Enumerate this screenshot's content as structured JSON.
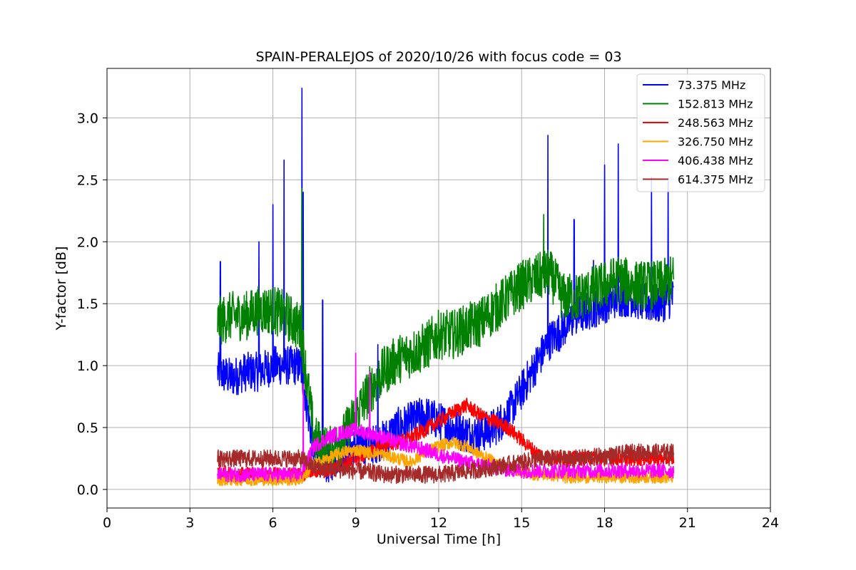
{
  "chart_data": {
    "type": "line",
    "title": "SPAIN-PERALEJOS of 2020/10/26 with focus code = 03",
    "xlabel": "Universal Time [h]",
    "ylabel": "Y-factor [dB]",
    "xlim": [
      0,
      24
    ],
    "ylim": [
      -0.15,
      3.4
    ],
    "xticks": [
      0,
      3,
      6,
      9,
      12,
      15,
      18,
      21,
      24
    ],
    "xtick_labels": [
      "0",
      "3",
      "6",
      "9",
      "12",
      "15",
      "18",
      "21",
      "24"
    ],
    "yticks": [
      0.0,
      0.5,
      1.0,
      1.5,
      2.0,
      2.5,
      3.0
    ],
    "ytick_labels": [
      "0.0",
      "0.5",
      "1.0",
      "1.5",
      "2.0",
      "2.5",
      "3.0"
    ],
    "grid": true,
    "legend_position": "top-right",
    "x": [
      4.0,
      4.5,
      5.0,
      5.5,
      6.0,
      6.5,
      7.0,
      7.5,
      8.0,
      8.5,
      9.0,
      9.5,
      10.0,
      10.5,
      11.0,
      11.5,
      12.0,
      12.5,
      13.0,
      13.5,
      14.0,
      14.5,
      15.0,
      15.5,
      16.0,
      16.5,
      17.0,
      17.5,
      18.0,
      18.5,
      19.0,
      19.5,
      20.0,
      20.5
    ],
    "series": [
      {
        "name": " 73.375 MHz",
        "color": "#0000ff",
        "noise": 0.16,
        "values": [
          0.95,
          0.9,
          0.95,
          0.95,
          1.0,
          1.0,
          1.0,
          0.3,
          0.2,
          0.3,
          0.35,
          0.35,
          0.4,
          0.5,
          0.55,
          0.6,
          0.55,
          0.5,
          0.45,
          0.45,
          0.5,
          0.6,
          0.8,
          1.0,
          1.2,
          1.3,
          1.4,
          1.45,
          1.5,
          1.55,
          1.55,
          1.5,
          1.5,
          1.55
        ],
        "spikes": [
          [
            4.1,
            1.84
          ],
          [
            5.5,
            2.0
          ],
          [
            6.0,
            2.3
          ],
          [
            6.4,
            2.66
          ],
          [
            7.05,
            3.24
          ],
          [
            7.1,
            2.4
          ],
          [
            7.8,
            1.53
          ],
          [
            9.8,
            1.17
          ],
          [
            15.95,
            2.86
          ],
          [
            16.9,
            2.18
          ],
          [
            17.6,
            1.85
          ],
          [
            18.0,
            2.62
          ],
          [
            18.5,
            2.79
          ],
          [
            19.7,
            2.52
          ],
          [
            20.3,
            2.49
          ]
        ]
      },
      {
        "name": "152.813 MHz",
        "color": "#008000",
        "noise": 0.2,
        "values": [
          1.35,
          1.4,
          1.4,
          1.45,
          1.45,
          1.4,
          1.3,
          0.4,
          0.3,
          0.4,
          0.6,
          0.8,
          0.95,
          1.05,
          1.1,
          1.15,
          1.25,
          1.25,
          1.3,
          1.35,
          1.45,
          1.55,
          1.65,
          1.7,
          1.75,
          1.55,
          1.55,
          1.6,
          1.65,
          1.7,
          1.65,
          1.65,
          1.65,
          1.7
        ],
        "spikes": [
          [
            7.05,
            2.43
          ],
          [
            15.8,
            2.22
          ]
        ]
      },
      {
        "name": "248.563 MHz",
        "color": "#ff0000",
        "noise": 0.06,
        "values": [
          0.15,
          0.12,
          0.12,
          0.12,
          0.12,
          0.12,
          0.12,
          0.15,
          0.15,
          0.2,
          0.25,
          0.3,
          0.35,
          0.38,
          0.42,
          0.48,
          0.55,
          0.62,
          0.68,
          0.6,
          0.55,
          0.5,
          0.4,
          0.3,
          0.25,
          0.25,
          0.25,
          0.25,
          0.25,
          0.25,
          0.25,
          0.25,
          0.25,
          0.25
        ],
        "spikes": []
      },
      {
        "name": "326.750 MHz",
        "color": "#ffa500",
        "noise": 0.05,
        "values": [
          0.08,
          0.08,
          0.08,
          0.08,
          0.08,
          0.08,
          0.08,
          0.2,
          0.25,
          0.3,
          0.32,
          0.3,
          0.28,
          0.25,
          0.22,
          0.3,
          0.35,
          0.38,
          0.35,
          0.28,
          0.22,
          0.18,
          0.15,
          0.12,
          0.12,
          0.1,
          0.1,
          0.1,
          0.1,
          0.1,
          0.1,
          0.1,
          0.1,
          0.1
        ],
        "spikes": []
      },
      {
        "name": "406.438 MHz",
        "color": "#ff00ff",
        "noise": 0.06,
        "values": [
          0.12,
          0.12,
          0.12,
          0.12,
          0.12,
          0.12,
          0.12,
          0.35,
          0.42,
          0.46,
          0.48,
          0.45,
          0.42,
          0.38,
          0.35,
          0.32,
          0.28,
          0.25,
          0.22,
          0.2,
          0.18,
          0.16,
          0.15,
          0.15,
          0.15,
          0.15,
          0.15,
          0.15,
          0.15,
          0.15,
          0.15,
          0.15,
          0.15,
          0.15
        ],
        "spikes": [
          [
            7.1,
            0.85
          ],
          [
            9.0,
            1.1
          ],
          [
            9.5,
            0.95
          ]
        ]
      },
      {
        "name": "614.375 MHz",
        "color": "#a52a2a",
        "noise": 0.07,
        "values": [
          0.25,
          0.25,
          0.25,
          0.25,
          0.25,
          0.25,
          0.25,
          0.18,
          0.16,
          0.16,
          0.15,
          0.14,
          0.12,
          0.12,
          0.12,
          0.12,
          0.12,
          0.13,
          0.15,
          0.16,
          0.18,
          0.2,
          0.22,
          0.24,
          0.25,
          0.25,
          0.25,
          0.26,
          0.27,
          0.28,
          0.3,
          0.3,
          0.3,
          0.3
        ],
        "spikes": []
      }
    ]
  }
}
